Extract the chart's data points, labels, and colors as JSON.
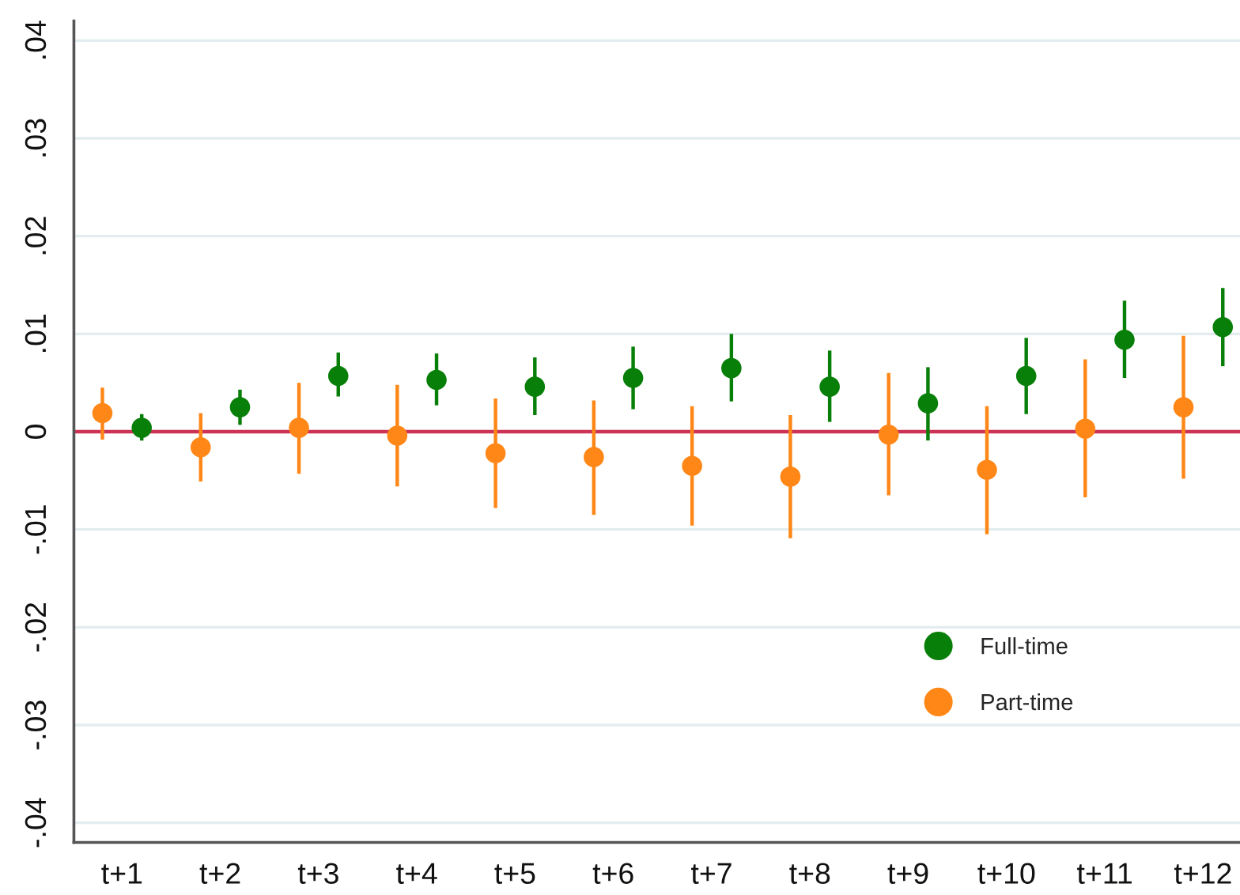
{
  "chart_data": {
    "type": "scatter",
    "marker": "circle",
    "grid": "y",
    "legend": "bottom right",
    "categories": [
      "t+1",
      "t+2",
      "t+3",
      "t+4",
      "t+5",
      "t+6",
      "t+7",
      "t+8",
      "t+9",
      "t+10",
      "t+11",
      "t+12"
    ],
    "ylim": [
      -0.042,
      0.042
    ],
    "yticks": [
      {
        "value": 0.04,
        "label": ".04"
      },
      {
        "value": 0.03,
        "label": ".03"
      },
      {
        "value": 0.02,
        "label": ".02"
      },
      {
        "value": 0.01,
        "label": ".01"
      },
      0,
      {
        "value": -0.01,
        "label": "-.01"
      },
      {
        "value": -0.02,
        "label": "-.02"
      },
      {
        "value": -0.03,
        "label": "-.03"
      },
      {
        "value": -0.04,
        "label": "-.04"
      }
    ],
    "ref_lines": [
      {
        "axis": "y",
        "value": 0,
        "color": "#cc3355"
      }
    ],
    "series": [
      {
        "name": "Full-time",
        "color": "#087f08",
        "values": [
          0.0004,
          0.0025,
          0.0057,
          0.0053,
          0.0046,
          0.0055,
          0.0065,
          0.0046,
          0.0029,
          0.0057,
          0.0094,
          0.0107
        ],
        "errors": [
          [
            -0.0009,
            0.0018
          ],
          [
            0.0007,
            0.0043
          ],
          [
            0.0036,
            0.0081
          ],
          [
            0.0027,
            0.008
          ],
          [
            0.0017,
            0.0076
          ],
          [
            0.0023,
            0.0087
          ],
          [
            0.0031,
            0.01
          ],
          [
            0.001,
            0.0083
          ],
          [
            -0.0009,
            0.0066
          ],
          [
            0.0018,
            0.0096
          ],
          [
            0.0055,
            0.0134
          ],
          [
            0.0067,
            0.0147
          ]
        ]
      },
      {
        "name": "Part-time",
        "color": "#ff8717",
        "values": [
          0.0019,
          -0.0016,
          0.0004,
          -0.0004,
          -0.0022,
          -0.0026,
          -0.0035,
          -0.0046,
          -0.0003,
          -0.0039,
          0.0003,
          0.0025
        ],
        "errors": [
          [
            -0.0008,
            0.0045
          ],
          [
            -0.0051,
            0.0019
          ],
          [
            -0.0043,
            0.005
          ],
          [
            -0.0056,
            0.0048
          ],
          [
            -0.0078,
            0.0034
          ],
          [
            -0.0085,
            0.0032
          ],
          [
            -0.0096,
            0.0026
          ],
          [
            -0.0109,
            0.0017
          ],
          [
            -0.0065,
            0.006
          ],
          [
            -0.0105,
            0.0026
          ],
          [
            -0.0067,
            0.0074
          ],
          [
            -0.0048,
            0.0098
          ]
        ]
      }
    ]
  }
}
